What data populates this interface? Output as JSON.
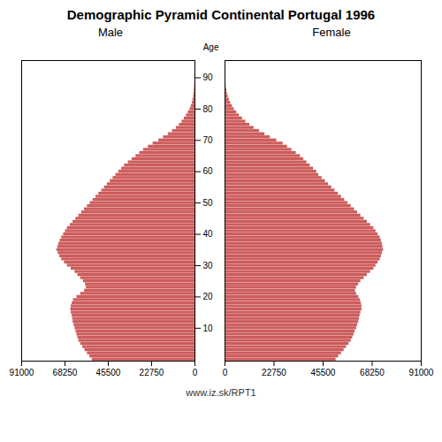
{
  "chart_data": {
    "type": "bar",
    "orientation": "horizontal",
    "title": "Demographic Pyramid Continental Portugal 1996",
    "ylabel": "Age",
    "annotations": [
      "www.iz.sk/RPT1"
    ],
    "categories": [
      0,
      1,
      2,
      3,
      4,
      5,
      6,
      7,
      8,
      9,
      10,
      11,
      12,
      13,
      14,
      15,
      16,
      17,
      18,
      19,
      20,
      21,
      22,
      23,
      24,
      25,
      26,
      27,
      28,
      29,
      30,
      31,
      32,
      33,
      34,
      35,
      36,
      37,
      38,
      39,
      40,
      41,
      42,
      43,
      44,
      45,
      46,
      47,
      48,
      49,
      50,
      51,
      52,
      53,
      54,
      55,
      56,
      57,
      58,
      59,
      60,
      61,
      62,
      63,
      64,
      65,
      66,
      67,
      68,
      69,
      70,
      71,
      72,
      73,
      74,
      75,
      76,
      77,
      78,
      79,
      80,
      81,
      82,
      83,
      84,
      85,
      86,
      87,
      88,
      89,
      90,
      91,
      92,
      93,
      94,
      95
    ],
    "series": [
      {
        "name": "Male",
        "color": "#cd5c5c",
        "values": [
          54000,
          55200,
          56500,
          57800,
          58900,
          60000,
          61000,
          61500,
          62000,
          62500,
          63000,
          63500,
          64000,
          64200,
          64500,
          65000,
          65200,
          65000,
          64500,
          63800,
          62000,
          60000,
          58000,
          57000,
          57500,
          58500,
          60000,
          61500,
          63000,
          65000,
          67000,
          68500,
          70000,
          71000,
          71800,
          72500,
          72000,
          71500,
          70800,
          70000,
          69000,
          68000,
          67000,
          65500,
          64000,
          62500,
          61000,
          59500,
          58000,
          56500,
          55000,
          53500,
          52000,
          50500,
          49000,
          47500,
          46000,
          44500,
          43000,
          41500,
          40000,
          38500,
          37000,
          35000,
          33000,
          31000,
          29000,
          27000,
          24500,
          22000,
          19000,
          16500,
          14000,
          11800,
          9800,
          8200,
          6800,
          5600,
          4500,
          3500,
          2600,
          1900,
          1400,
          1000,
          720,
          510,
          360,
          250,
          170,
          115,
          78,
          52,
          34,
          22,
          14,
          9
        ]
      },
      {
        "name": "Female",
        "color": "#cd5c5c",
        "values": [
          51500,
          52700,
          54000,
          55200,
          56300,
          57500,
          58500,
          59200,
          59800,
          60300,
          61000,
          61500,
          62000,
          62300,
          62600,
          63000,
          63500,
          63500,
          63200,
          62800,
          62000,
          61000,
          60500,
          61000,
          62000,
          63000,
          64500,
          66000,
          67500,
          69000,
          70000,
          71000,
          72000,
          72500,
          73000,
          73500,
          73200,
          73000,
          72500,
          72000,
          71000,
          70000,
          69000,
          67500,
          66000,
          64500,
          63000,
          61500,
          60000,
          58500,
          57000,
          55500,
          54000,
          52500,
          51000,
          49500,
          48000,
          46500,
          45000,
          43500,
          42500,
          41000,
          39500,
          38000,
          36500,
          35000,
          33000,
          31000,
          29000,
          27000,
          24000,
          21000,
          18500,
          16000,
          13500,
          11500,
          9700,
          8100,
          6700,
          5400,
          4300,
          3400,
          2600,
          2000,
          1500,
          1100,
          820,
          590,
          420,
          295,
          205,
          140,
          95,
          64,
          43,
          28
        ]
      }
    ],
    "xlim": [
      0,
      91000
    ],
    "xticks": [
      0,
      22750,
      45500,
      68250,
      91000
    ],
    "ylim": [
      -0.5,
      95.5
    ],
    "yticks": [
      10,
      20,
      30,
      40,
      50,
      60,
      70,
      80,
      90
    ]
  }
}
